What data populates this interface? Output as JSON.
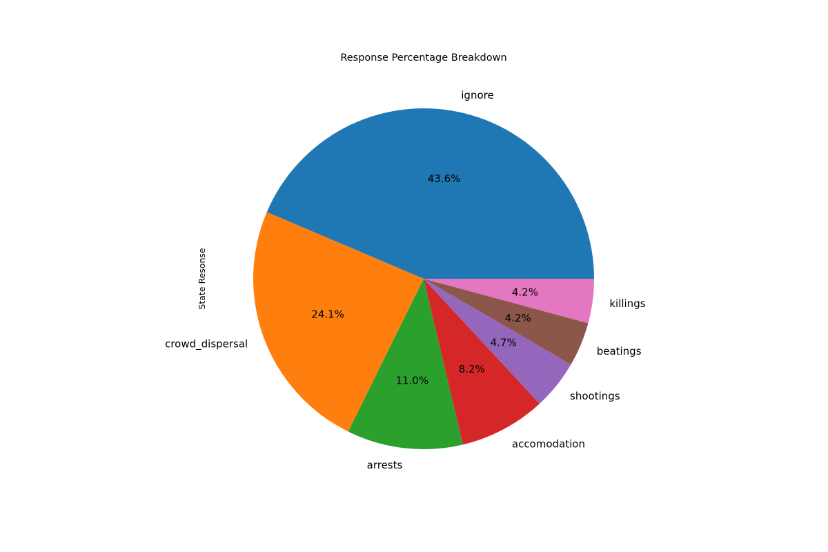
{
  "chart_data": {
    "type": "pie",
    "title": "Response Percentage Breakdown",
    "ylabel": "State Resonse",
    "start_angle": 0,
    "direction": "counterclockwise",
    "slices": [
      {
        "label": "ignore",
        "value": 43.6,
        "pct_label": "43.6%",
        "color": "#1f77b4"
      },
      {
        "label": "crowd_dispersal",
        "value": 24.1,
        "pct_label": "24.1%",
        "color": "#ff7f0e"
      },
      {
        "label": "arrests",
        "value": 11.0,
        "pct_label": "11.0%",
        "color": "#2ca02c"
      },
      {
        "label": "accomodation",
        "value": 8.2,
        "pct_label": "8.2%",
        "color": "#d62728"
      },
      {
        "label": "shootings",
        "value": 4.7,
        "pct_label": "4.7%",
        "color": "#9467bd"
      },
      {
        "label": "beatings",
        "value": 4.2,
        "pct_label": "4.2%",
        "color": "#8c564b"
      },
      {
        "label": "killings",
        "value": 4.2,
        "pct_label": "4.2%",
        "color": "#e377c2"
      }
    ]
  }
}
